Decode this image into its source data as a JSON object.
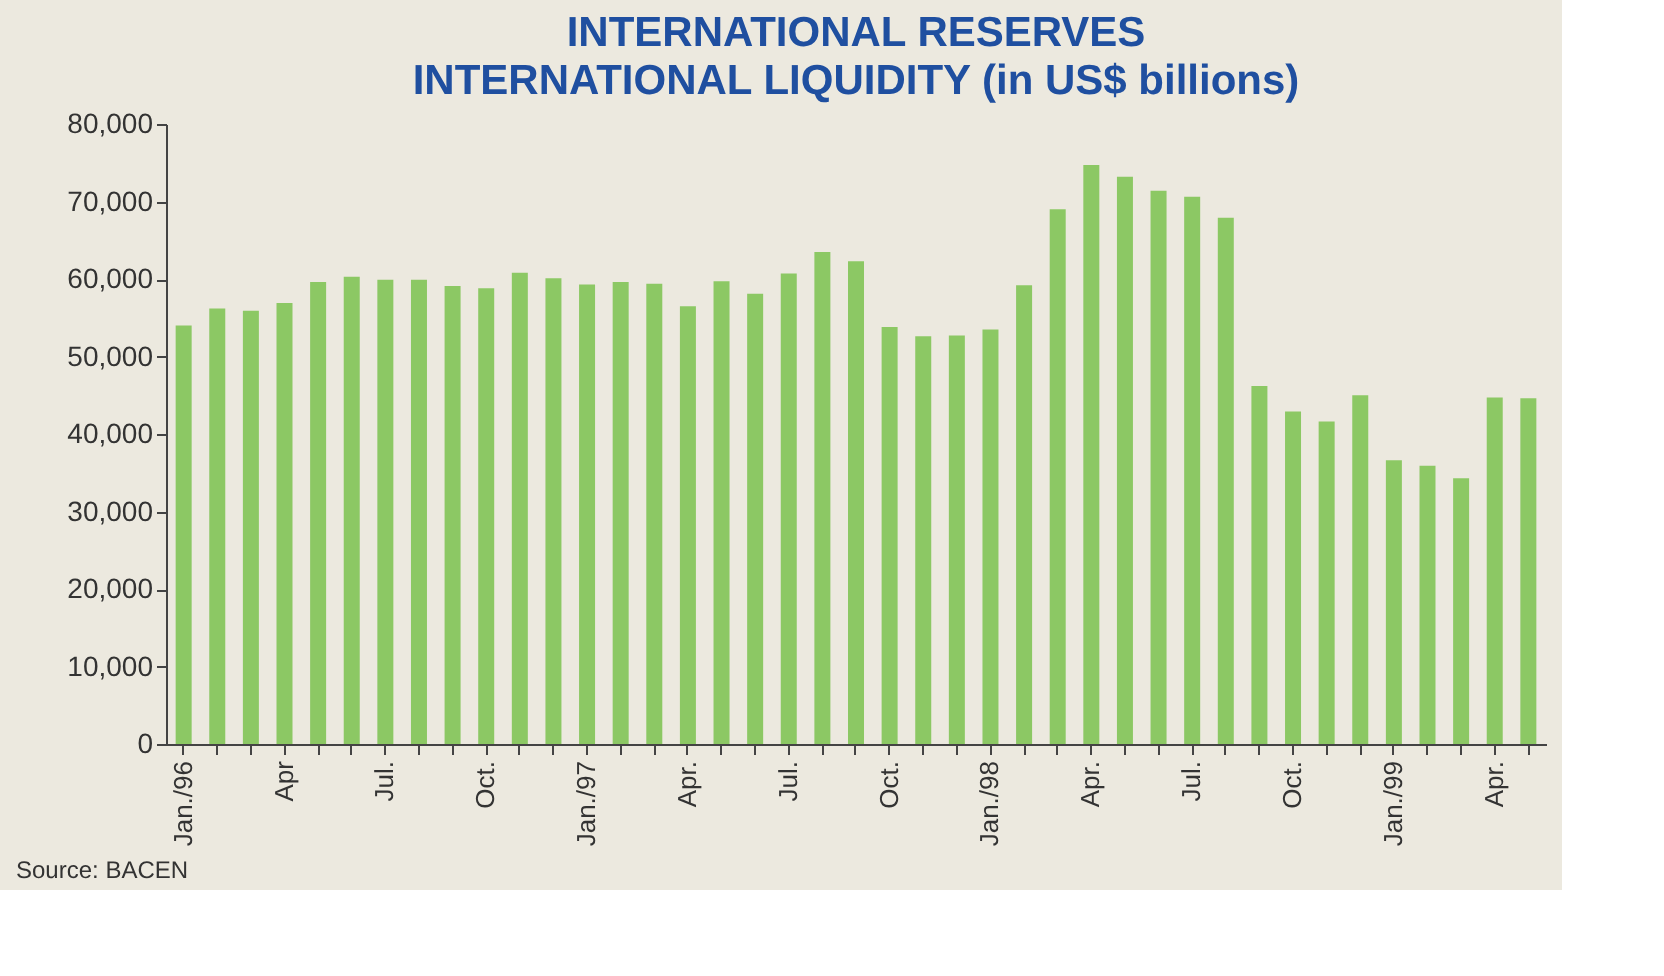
{
  "chart_data": {
    "type": "bar",
    "title": "INTERNATIONAL RESERVES",
    "subtitle": "INTERNATIONAL LIQUIDITY (in US$ billions)",
    "categories": [
      "Jan./96",
      null,
      null,
      "Apr",
      null,
      null,
      "Jul.",
      null,
      null,
      "Oct.",
      null,
      null,
      "Jan./97",
      null,
      null,
      "Apr.",
      null,
      null,
      "Jul.",
      null,
      null,
      "Oct.",
      null,
      null,
      "Jan./98",
      null,
      null,
      "Apr.",
      null,
      null,
      "Jul.",
      null,
      null,
      "Oct.",
      null,
      null,
      "Jan./99",
      null,
      null,
      "Apr.",
      null
    ],
    "values": [
      54000,
      56200,
      55900,
      56900,
      59600,
      60300,
      59900,
      59900,
      59100,
      58800,
      60800,
      60100,
      59300,
      59600,
      59400,
      56500,
      59700,
      58100,
      60700,
      63500,
      62300,
      53800,
      52600,
      52700,
      53500,
      59200,
      69000,
      74700,
      73200,
      71400,
      70600,
      67900,
      46200,
      42900,
      41600,
      45000,
      36600,
      35900,
      34300,
      44700,
      44600
    ],
    "color": "#8cc864",
    "ylim": [
      0,
      80000
    ],
    "yticks": [
      {
        "value": 0,
        "label": "0"
      },
      {
        "value": 10000,
        "label": "10,000"
      },
      {
        "value": 20000,
        "label": "20,000"
      },
      {
        "value": 30000,
        "label": "30,000"
      },
      {
        "value": 40000,
        "label": "40,000"
      },
      {
        "value": 50000,
        "label": "50,000"
      },
      {
        "value": 60000,
        "label": "60,000"
      },
      {
        "value": 70000,
        "label": "70,000"
      },
      {
        "value": 80000,
        "label": "80,000"
      }
    ],
    "grid": false,
    "annotations": [
      "Source: BACEN"
    ]
  }
}
